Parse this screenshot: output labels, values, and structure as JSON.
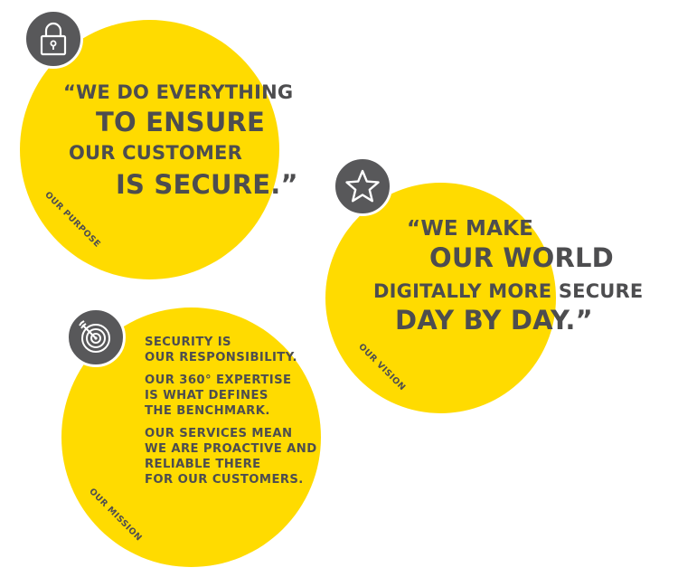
{
  "purpose": {
    "quote": [
      "“WE DO EVERYTHING",
      "TO ENSURE",
      "OUR CUSTOMER",
      "IS SECURE.”"
    ],
    "label": "OUR PURPOSE",
    "icon": "lock-icon"
  },
  "vision": {
    "quote": [
      "“WE MAKE",
      "OUR WORLD",
      "DIGITALLY MORE SECURE",
      "DAY BY DAY.”"
    ],
    "label": "OUR VISION",
    "icon": "star-icon"
  },
  "mission": {
    "paragraphs": [
      [
        "SECURITY IS",
        "OUR RESPONSIBILITY."
      ],
      [
        "OUR 360° EXPERTISE",
        "IS WHAT DEFINES",
        "THE BENCHMARK."
      ],
      [
        "OUR SERVICES MEAN",
        "WE ARE PROACTIVE AND",
        "RELIABLE THERE",
        "FOR OUR CUSTOMERS."
      ]
    ],
    "label": "OUR MISSION",
    "icon": "target-icon"
  },
  "colors": {
    "accent": "#ffdb00",
    "text": "#4d4d4f",
    "badge": "#58585a"
  }
}
